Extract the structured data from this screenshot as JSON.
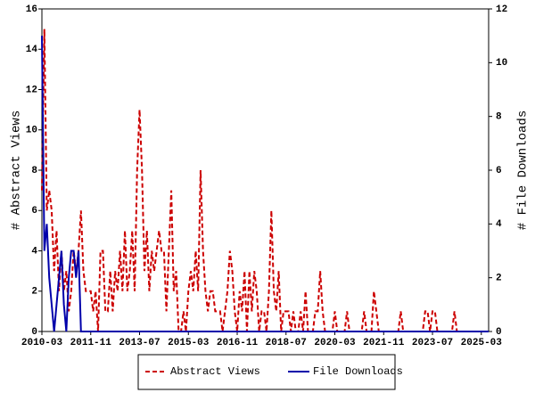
{
  "chart_data": {
    "type": "line",
    "y_label": "# Abstract Views",
    "y2_label": "# File Downloads",
    "x": [
      "2010-03",
      "2010-04",
      "2010-05",
      "2010-06",
      "2010-07",
      "2010-08",
      "2010-09",
      "2010-10",
      "2010-11",
      "2010-12",
      "2011-01",
      "2011-02",
      "2011-03",
      "2011-04",
      "2011-05",
      "2011-06",
      "2011-07",
      "2011-08",
      "2011-09",
      "2011-10",
      "2011-11",
      "2011-12",
      "2012-01",
      "2012-02",
      "2012-03",
      "2012-04",
      "2012-05",
      "2012-06",
      "2012-07",
      "2012-08",
      "2012-09",
      "2012-10",
      "2012-11",
      "2012-12",
      "2013-01",
      "2013-02",
      "2013-03",
      "2013-04",
      "2013-05",
      "2013-06",
      "2013-07",
      "2013-08",
      "2013-09",
      "2013-10",
      "2013-11",
      "2013-12",
      "2014-01",
      "2014-02",
      "2014-03",
      "2014-04",
      "2014-05",
      "2014-06",
      "2014-07",
      "2014-08",
      "2014-09",
      "2014-10",
      "2014-11",
      "2014-12",
      "2015-01",
      "2015-02",
      "2015-03",
      "2015-04",
      "2015-05",
      "2015-06",
      "2015-07",
      "2015-08",
      "2015-09",
      "2015-10",
      "2015-11",
      "2015-12",
      "2016-01",
      "2016-02",
      "2016-03",
      "2016-04",
      "2016-05",
      "2016-06",
      "2016-07",
      "2016-08",
      "2016-09",
      "2016-10",
      "2016-11",
      "2016-12",
      "2017-01",
      "2017-02",
      "2017-03",
      "2017-04",
      "2017-05",
      "2017-06",
      "2017-07",
      "2017-08",
      "2017-09",
      "2017-10",
      "2017-11",
      "2017-12",
      "2018-01",
      "2018-02",
      "2018-03",
      "2018-04",
      "2018-05",
      "2018-06",
      "2018-07",
      "2018-08",
      "2018-09",
      "2018-10",
      "2018-11",
      "2018-12",
      "2019-01",
      "2019-02",
      "2019-03",
      "2019-04",
      "2019-05",
      "2019-06",
      "2019-07",
      "2019-08",
      "2019-09",
      "2019-10",
      "2019-11",
      "2019-12",
      "2020-01",
      "2020-02",
      "2020-03",
      "2020-04",
      "2020-05",
      "2020-06",
      "2020-07",
      "2020-08",
      "2020-09",
      "2020-10",
      "2020-11",
      "2020-12",
      "2021-01",
      "2021-02",
      "2021-03",
      "2021-04",
      "2021-05",
      "2021-06",
      "2021-07",
      "2021-08",
      "2021-09",
      "2021-10",
      "2021-11",
      "2021-12",
      "2022-01",
      "2022-02",
      "2022-03",
      "2022-04",
      "2022-05",
      "2022-06",
      "2022-07",
      "2022-08",
      "2022-09",
      "2022-10",
      "2022-11",
      "2022-12",
      "2023-01",
      "2023-02",
      "2023-03",
      "2023-04",
      "2023-05",
      "2023-06",
      "2023-07",
      "2023-08",
      "2023-09",
      "2023-10",
      "2023-11",
      "2023-12",
      "2024-01",
      "2024-02",
      "2024-03",
      "2024-04",
      "2024-05",
      "2024-06",
      "2024-07",
      "2024-08",
      "2024-09",
      "2024-10",
      "2024-11",
      "2024-12",
      "2025-01",
      "2025-02",
      "2025-03",
      "2025-04",
      "2025-05",
      "2025-06"
    ],
    "series": [
      {
        "name": "Abstract Views",
        "color": "#cc0000",
        "dash": true,
        "values": [
          7,
          15,
          6,
          7,
          6,
          3,
          5,
          2,
          4,
          2,
          3,
          1,
          2,
          4,
          3,
          4,
          6,
          3,
          2,
          2,
          2,
          1,
          2,
          0,
          4,
          4,
          1,
          1,
          3,
          1,
          3,
          2,
          4,
          2,
          5,
          2,
          3,
          5,
          2,
          8,
          11,
          8,
          3,
          5,
          2,
          4,
          3,
          4,
          5,
          4,
          4,
          1,
          4,
          7,
          2,
          3,
          0,
          0,
          1,
          0,
          2,
          3,
          2,
          4,
          2,
          8,
          4,
          2,
          1,
          2,
          2,
          1,
          1,
          1,
          0,
          1,
          2,
          4,
          3,
          1,
          0,
          2,
          1,
          3,
          0,
          3,
          1,
          3,
          2,
          0,
          1,
          1,
          0,
          2,
          6,
          2,
          1,
          3,
          0,
          1,
          1,
          1,
          0,
          1,
          0,
          0,
          1,
          0,
          2,
          0,
          0,
          0,
          1,
          1,
          3,
          1,
          0,
          0,
          0,
          0,
          1,
          0,
          0,
          0,
          0,
          1,
          0,
          0,
          0,
          0,
          0,
          0,
          1,
          0,
          0,
          0,
          2,
          1,
          0,
          0,
          0,
          0,
          0,
          0,
          0,
          0,
          0,
          1,
          0,
          0,
          0,
          0,
          0,
          0,
          0,
          0,
          0,
          1,
          1,
          0,
          1,
          1,
          0,
          0,
          0,
          0,
          0,
          0,
          0,
          1,
          0,
          0,
          0,
          0,
          0,
          0,
          0,
          0,
          0,
          0,
          0,
          0,
          0,
          0
        ]
      },
      {
        "name": "File Downloads",
        "color": "#0000aa",
        "dash": false,
        "axis": "y2",
        "values": [
          11,
          3,
          4,
          2,
          1,
          0,
          1,
          2,
          3,
          1,
          0,
          2,
          3,
          3,
          2,
          3,
          0,
          0,
          0,
          0,
          0,
          0,
          0,
          0,
          0,
          0,
          0,
          0,
          0,
          0,
          0,
          0,
          0,
          0,
          0,
          0,
          0,
          0,
          0,
          0,
          0,
          0,
          0,
          0,
          0,
          0,
          0,
          0,
          0,
          0,
          0,
          0,
          0,
          0,
          0,
          0,
          0,
          0,
          0,
          0,
          0,
          0,
          0,
          0,
          0,
          0,
          0,
          0,
          0,
          0,
          0,
          0,
          0,
          0,
          0,
          0,
          0,
          0,
          0,
          0,
          0,
          0,
          0,
          0,
          0,
          0,
          0,
          0,
          0,
          0,
          0,
          0,
          0,
          0,
          0,
          0,
          0,
          0,
          0,
          0,
          0,
          0,
          0,
          0,
          0,
          0,
          0,
          0,
          0,
          0,
          0,
          0,
          0,
          0,
          0,
          0,
          0,
          0,
          0,
          0,
          0,
          0,
          0,
          0,
          0,
          0,
          0,
          0,
          0,
          0,
          0,
          0,
          0,
          0,
          0,
          0,
          0,
          0,
          0,
          0,
          0,
          0,
          0,
          0,
          0,
          0,
          0,
          0,
          0,
          0,
          0,
          0,
          0,
          0,
          0,
          0,
          0,
          0,
          0,
          0,
          0,
          0,
          0,
          0,
          0,
          0,
          0,
          0,
          0,
          0,
          0,
          0,
          0,
          0,
          0,
          0,
          0,
          0,
          0,
          0,
          0,
          0,
          0,
          0
        ]
      }
    ],
    "xlim": [
      "2010-03",
      "2025-06"
    ],
    "xticks": [
      "2010-03",
      "2011-11",
      "2013-07",
      "2015-03",
      "2016-11",
      "2018-07",
      "2020-03",
      "2021-11",
      "2023-07",
      "2025-03"
    ],
    "ylim": [
      0,
      16
    ],
    "yticks": [
      0,
      2,
      4,
      6,
      8,
      10,
      12,
      14,
      16
    ],
    "y2lim": [
      0,
      12
    ],
    "y2ticks": [
      0,
      2,
      4,
      6,
      8,
      10,
      12
    ],
    "legend": "bottom"
  }
}
